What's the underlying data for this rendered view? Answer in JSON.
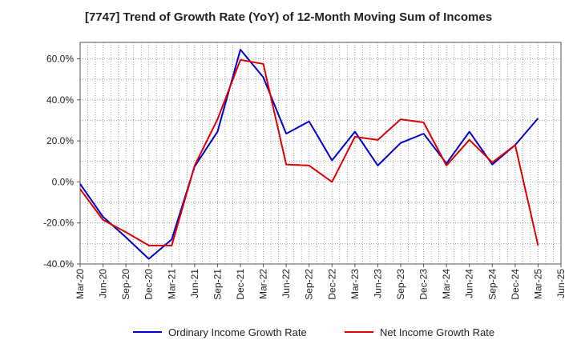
{
  "chart_data": {
    "type": "line",
    "title": "[7747]  Trend of Growth Rate (YoY) of 12-Month Moving Sum of Incomes",
    "xlabel": "",
    "ylabel": "",
    "x": [
      "Mar-20",
      "Jun-20",
      "Sep-20",
      "Dec-20",
      "Mar-21",
      "Jun-21",
      "Sep-21",
      "Dec-21",
      "Mar-22",
      "Jun-22",
      "Sep-22",
      "Dec-22",
      "Mar-23",
      "Jun-23",
      "Sep-23",
      "Dec-23",
      "Mar-24",
      "Jun-24",
      "Sep-24",
      "Dec-24",
      "Mar-25",
      "Jun-25"
    ],
    "ylim": [
      -40,
      68
    ],
    "yticks": [
      -40,
      -20,
      0,
      20,
      40,
      60
    ],
    "ytick_labels": [
      "-40.0%",
      "-20.0%",
      "0.0%",
      "20.0%",
      "40.0%",
      "60.0%"
    ],
    "grid": true,
    "legend_position": "bottom",
    "series": [
      {
        "name": "Ordinary Income Growth Rate",
        "color": "#0000cc",
        "values": [
          -1,
          -17,
          -27,
          -37.5,
          -28,
          7.5,
          24.5,
          64.5,
          51,
          23.5,
          29.5,
          10.5,
          24.5,
          8,
          19,
          23.5,
          9,
          24.5,
          8.5,
          18,
          31,
          null
        ]
      },
      {
        "name": "Net Income Growth Rate",
        "color": "#dd0000",
        "values": [
          -3.5,
          -18.5,
          -24.5,
          -31,
          -31,
          8,
          30.5,
          59.5,
          57.5,
          8.5,
          8,
          0,
          22,
          20.5,
          30.5,
          29,
          8,
          20.5,
          9.5,
          18,
          -31,
          null
        ]
      }
    ]
  }
}
